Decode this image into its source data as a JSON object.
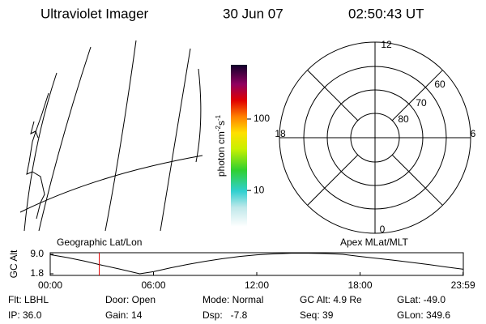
{
  "header": {
    "instrument": "Ultraviolet Imager",
    "date": "30 Jun 07",
    "time": "02:50:43 UT"
  },
  "colorbar": {
    "unit": "photon cm",
    "exp1": "-2",
    "unit2": "s",
    "exp2": "-1",
    "range": [
      3.1,
      575
    ],
    "log": true,
    "ticks": [
      10,
      100
    ]
  },
  "polar": {
    "mlt_labels": [
      "12",
      "6",
      "0",
      "18"
    ],
    "lat_labels": [
      "60",
      "70",
      "80"
    ]
  },
  "altitude_plot": {
    "ylabel": "GC Alt",
    "left_label": "Geographic Lat/Lon",
    "right_label": "Apex MLat/MLT",
    "xlim": [
      0,
      24
    ],
    "ylim": [
      1.2,
      9.6
    ],
    "xticks": [
      {
        "value": 0,
        "label": "00:00"
      },
      {
        "value": 6,
        "label": "06:00"
      },
      {
        "value": 12,
        "label": "12:00"
      },
      {
        "value": 18,
        "label": "18:00"
      },
      {
        "value": 23.983,
        "label": "23:59"
      }
    ],
    "yticks": [
      {
        "value": 9,
        "label": "9.0"
      },
      {
        "value": 1.8,
        "label": "1.8"
      }
    ],
    "x": [
      0,
      1,
      2,
      3,
      4,
      5,
      5.2,
      6,
      7,
      8,
      9,
      10,
      11,
      12,
      13,
      14,
      15,
      16,
      17,
      18,
      19,
      20,
      21,
      22,
      23,
      24
    ],
    "values": [
      8.9,
      7.8,
      6.5,
      5.0,
      3.6,
      2.1,
      1.8,
      2.6,
      4.0,
      5.3,
      6.4,
      7.4,
      8.2,
      8.8,
      9.2,
      9.4,
      9.4,
      9.3,
      9.0,
      8.2,
      7.5,
      6.8,
      6.0,
      5.2,
      4.3,
      3.5
    ],
    "current_time": 2.85
  },
  "footer": {
    "rows": [
      [
        "Flt: LBHL",
        "Door: Open",
        "Mode: Normal",
        "GC Alt: 4.9 Re",
        "GLat: -49.0"
      ],
      [
        "IP: 36.0",
        "Gain: 14",
        "Dsp:   -7.8",
        "Seq: 39",
        "GLon: 349.6"
      ]
    ]
  }
}
